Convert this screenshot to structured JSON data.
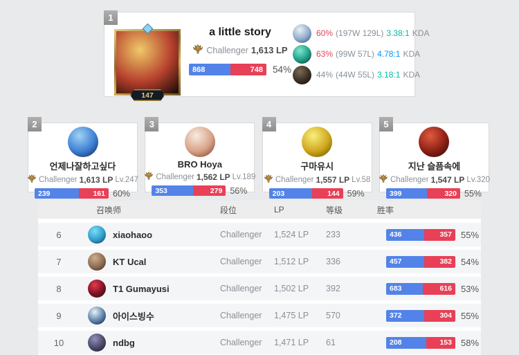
{
  "colors": {
    "blue": "#5383e8",
    "red": "#e84057",
    "kda_green": "#00bba3",
    "kda_blue": "#0093ff",
    "win_red": "#e84057",
    "muted": "#879099"
  },
  "top_player": {
    "rank": "1",
    "name": "a little story",
    "tier": "Challenger",
    "lp": "1,613 LP",
    "level": "147",
    "wins": 868,
    "losses": 748,
    "winrate": "54%",
    "portrait_colors": [
      "#efc968",
      "#b5402c",
      "#240f08"
    ],
    "champions": [
      {
        "pct": "60%",
        "pct_color": "#e84057",
        "record": "(197W 129L)",
        "kda": "3.38:1",
        "kda_color": "#00bba3",
        "kda_label": "KDA",
        "avatar": [
          "#e9f1f7",
          "#8fa9cb",
          "#33517b"
        ]
      },
      {
        "pct": "63%",
        "pct_color": "#e84057",
        "record": "(99W 57L)",
        "kda": "4.78:1",
        "kda_color": "#0093ff",
        "kda_label": "KDA",
        "avatar": [
          "#7fe8d2",
          "#1f9c85",
          "#0b3f36"
        ]
      },
      {
        "pct": "44%",
        "pct_color": "#879099",
        "record": "(44W 55L)",
        "kda": "3.18:1",
        "kda_color": "#00bba3",
        "kda_label": "KDA",
        "avatar": [
          "#7d6a55",
          "#3a2f25",
          "#120e0a"
        ]
      }
    ]
  },
  "cards": [
    {
      "rank": "2",
      "name": "언제나잘하고싶다",
      "tier": "Challenger",
      "lp": "1,613 LP",
      "level": "Lv.247",
      "wins": 239,
      "losses": 161,
      "winrate": "60%",
      "avatar": [
        "#9fd4f2",
        "#3e7fd6",
        "#16294e"
      ]
    },
    {
      "rank": "3",
      "name": "BRO Hoya",
      "tier": "Challenger",
      "lp": "1,562 LP",
      "level": "Lv.189",
      "wins": 353,
      "losses": 279,
      "winrate": "56%",
      "avatar": [
        "#f7ece0",
        "#d8a287",
        "#7c3f2e"
      ]
    },
    {
      "rank": "4",
      "name": "구마유시",
      "tier": "Challenger",
      "lp": "1,557 LP",
      "level": "Lv.58",
      "wins": 203,
      "losses": 144,
      "winrate": "59%",
      "avatar": [
        "#f9ef7e",
        "#cfa71c",
        "#6b5300"
      ]
    },
    {
      "rank": "5",
      "name": "지난 슬픔속에",
      "tier": "Challenger",
      "lp": "1,547 LP",
      "level": "Lv.320",
      "wins": 399,
      "losses": 320,
      "winrate": "55%",
      "avatar": [
        "#e05a3f",
        "#8c2014",
        "#2e0d08"
      ]
    }
  ],
  "table": {
    "headers": {
      "summoner": "召唤师",
      "tier": "段位",
      "lp": "LP",
      "level": "等级",
      "winrate": "胜率"
    },
    "rows": [
      {
        "rank": "6",
        "name": "xiaohaoo",
        "tier": "Challenger",
        "lp": "1,524 LP",
        "level": "233",
        "wins": 436,
        "losses": 357,
        "winrate": "55%",
        "avatar": [
          "#7adef5",
          "#2f9cc9",
          "#173a5e"
        ]
      },
      {
        "rank": "7",
        "name": "KT Ucal",
        "tier": "Challenger",
        "lp": "1,512 LP",
        "level": "336",
        "wins": 457,
        "losses": 382,
        "winrate": "54%",
        "avatar": [
          "#cfae8f",
          "#8d6b52",
          "#402a1e"
        ]
      },
      {
        "rank": "8",
        "name": "T1 Gumayusi",
        "tier": "Challenger",
        "lp": "1,502 LP",
        "level": "392",
        "wins": 683,
        "losses": 616,
        "winrate": "53%",
        "avatar": [
          "#e23a4e",
          "#7c1020",
          "#0f2616"
        ]
      },
      {
        "rank": "9",
        "name": "아이스빙수",
        "tier": "Challenger",
        "lp": "1,475 LP",
        "level": "570",
        "wins": 372,
        "losses": 304,
        "winrate": "55%",
        "avatar": [
          "#e8f3f8",
          "#5a7fa8",
          "#16243f"
        ]
      },
      {
        "rank": "10",
        "name": "ndbg",
        "tier": "Challenger",
        "lp": "1,471 LP",
        "level": "61",
        "wins": 208,
        "losses": 153,
        "winrate": "58%",
        "avatar": [
          "#8f93b8",
          "#4a4668",
          "#1c1a2e"
        ]
      }
    ]
  }
}
